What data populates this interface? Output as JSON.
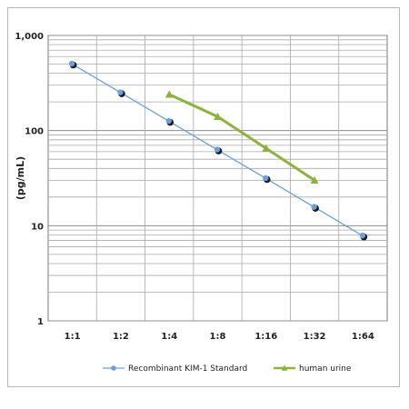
{
  "chart_data": {
    "type": "line",
    "ylabel": "(pg/mL)",
    "xlabel": "",
    "title": "",
    "yscale": "log",
    "ylim": [
      1,
      1000
    ],
    "grid": true,
    "legend_position": "bottom",
    "categories": [
      "1:1",
      "1:2",
      "1:4",
      "1:8",
      "1:16",
      "1:32",
      "1:64"
    ],
    "y_tick_labels": [
      "1",
      "10",
      "100",
      "1,000"
    ],
    "series": [
      {
        "name": "Recombinant KIM-1 Standard",
        "color": "#6f9fd8",
        "marker": "circle",
        "values": [
          500,
          250,
          125,
          62.5,
          31.3,
          15.6,
          7.8
        ]
      },
      {
        "name": "human urine",
        "color": "#8cb33e",
        "marker": "triangle",
        "values": [
          null,
          null,
          240,
          140,
          65,
          30,
          null
        ]
      }
    ]
  }
}
